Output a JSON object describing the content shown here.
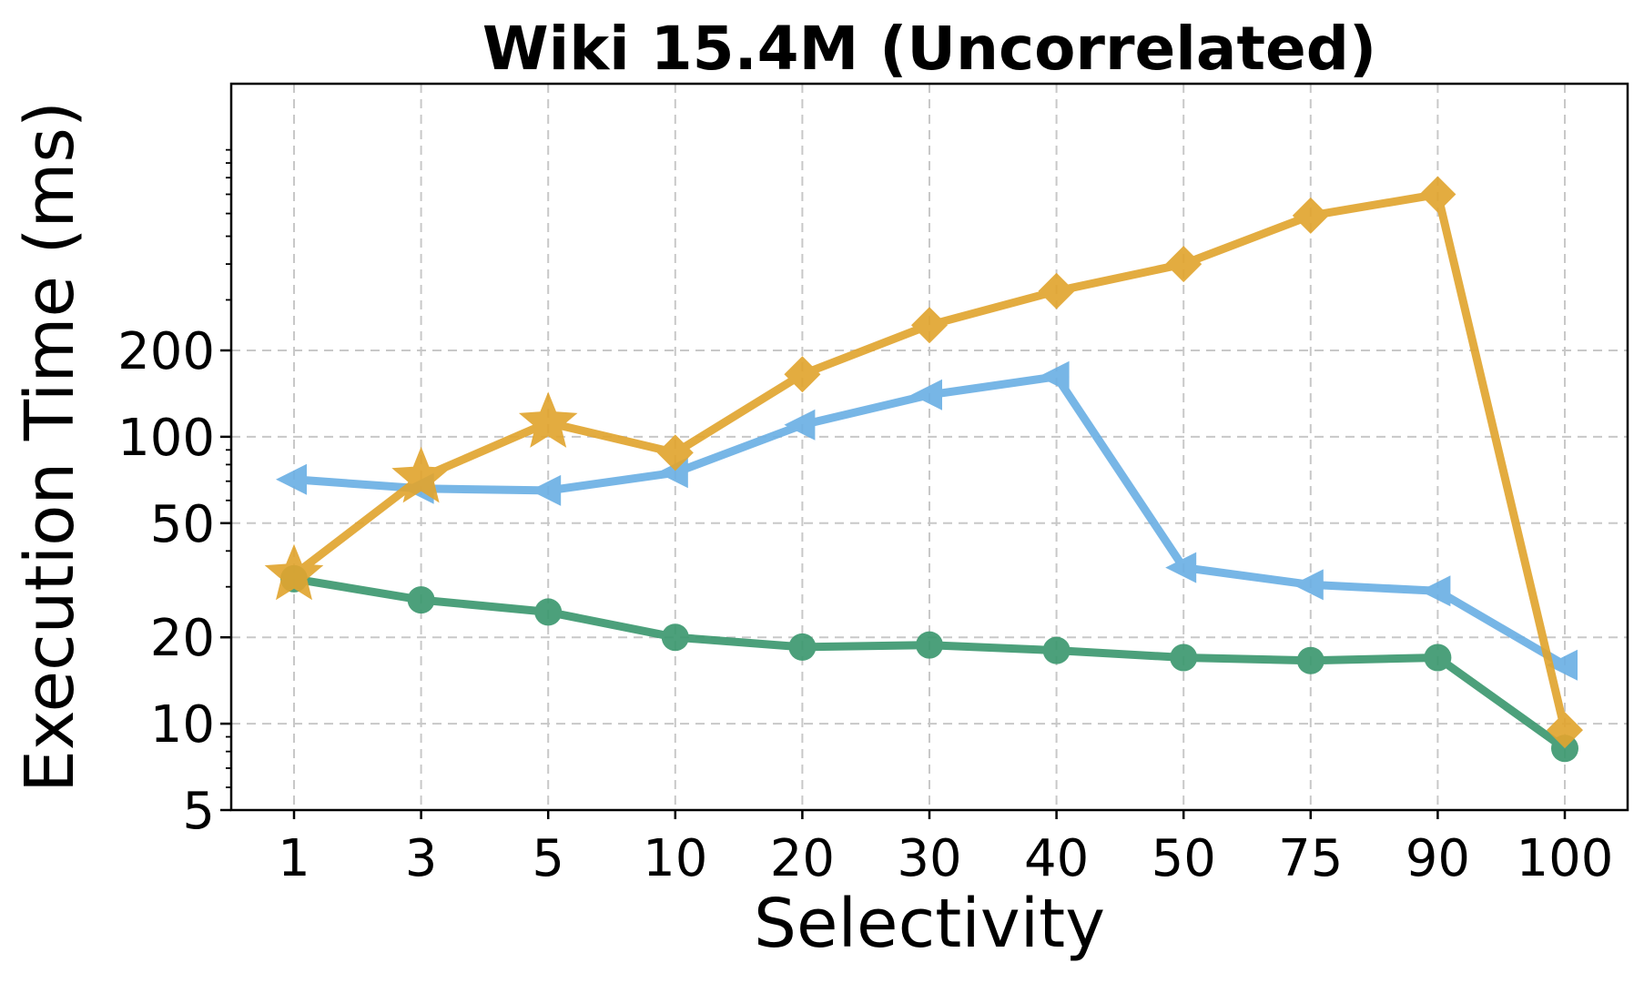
{
  "chart_data": {
    "type": "line",
    "title": "Wiki 15.4M (Uncorrelated)",
    "xlabel": "Selectivity",
    "ylabel": "Execution Time (ms)",
    "yscale": "log",
    "ylim": [
      5,
      1700
    ],
    "categories": [
      "1",
      "3",
      "5",
      "10",
      "20",
      "30",
      "40",
      "50",
      "75",
      "90",
      "100"
    ],
    "yticks": [
      5,
      10,
      20,
      50,
      100,
      200
    ],
    "ytick_labels": [
      "5",
      "10",
      "20",
      "50",
      "100",
      "200"
    ],
    "grid": true,
    "series": [
      {
        "name": "green-circle",
        "color": "#3d9970",
        "marker": "circle",
        "values": [
          32,
          27,
          24.5,
          20,
          18.5,
          18.8,
          18,
          17,
          16.6,
          17,
          8.2
        ]
      },
      {
        "name": "blue-triangle",
        "color": "#6cb0e4",
        "marker": "triangle-left",
        "values": [
          71,
          66,
          65,
          75,
          110,
          140,
          162,
          35,
          30.5,
          29,
          16
        ]
      },
      {
        "name": "orange-diamond",
        "color": "#e1a530",
        "marker": "diamond",
        "star_indices": [
          0,
          1,
          2
        ],
        "values": [
          33,
          72,
          112,
          88,
          165,
          245,
          322,
          400,
          590,
          700,
          9.5
        ]
      }
    ]
  }
}
